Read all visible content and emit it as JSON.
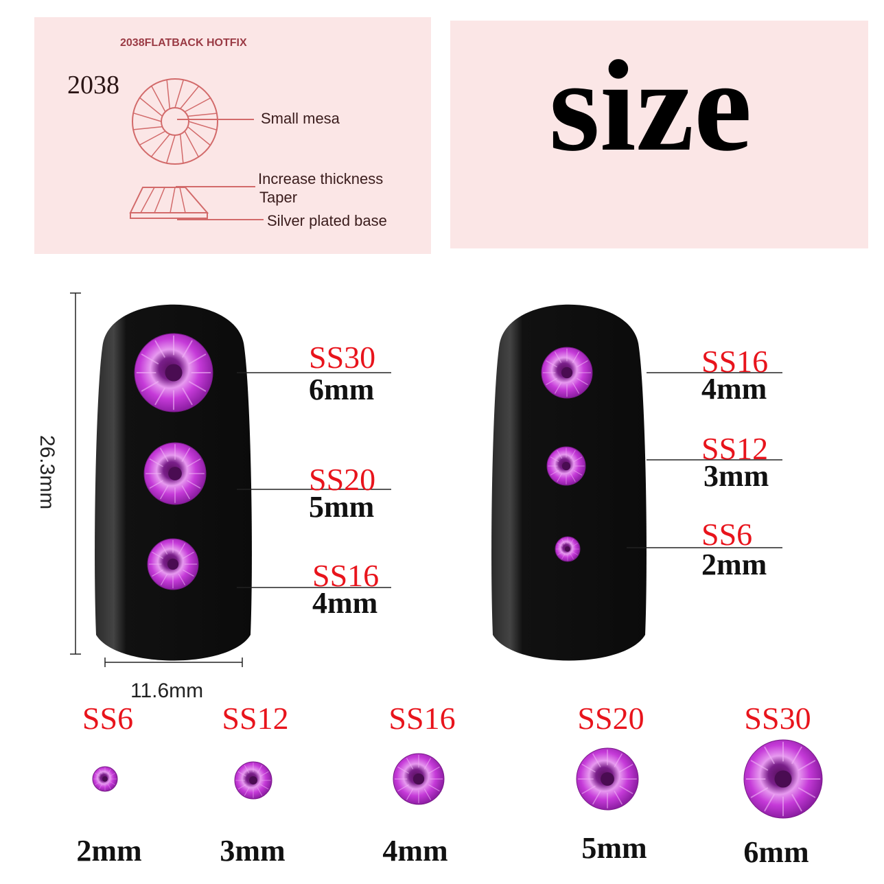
{
  "diagram_panel": {
    "heading": "2038FLATBACK HOTFIX",
    "model": "2038",
    "labels": [
      "Small mesa",
      "Increase thickness",
      "Taper",
      "Silver plated base"
    ],
    "line_color": "#d26a6a",
    "background": "#fbe6e6"
  },
  "title_panel": {
    "title": "size"
  },
  "nail_left": {
    "height_label": "26.3mm",
    "width_label": "11.6mm",
    "stones": [
      {
        "code": "SS30",
        "size": "6mm"
      },
      {
        "code": "SS20",
        "size": "5mm"
      },
      {
        "code": "SS16",
        "size": "4mm"
      }
    ]
  },
  "nail_right": {
    "stones": [
      {
        "code": "SS16",
        "size": "4mm"
      },
      {
        "code": "SS12",
        "size": "3mm"
      },
      {
        "code": "SS6",
        "size": "2mm"
      }
    ]
  },
  "size_row": [
    {
      "code": "SS6",
      "size": "2mm"
    },
    {
      "code": "SS12",
      "size": "3mm"
    },
    {
      "code": "SS16",
      "size": "4mm"
    },
    {
      "code": "SS20",
      "size": "5mm"
    },
    {
      "code": "SS30",
      "size": "6mm"
    }
  ],
  "colors": {
    "code_label": "#e8141c",
    "stone": "#c53ad8",
    "nail": "#111111"
  }
}
